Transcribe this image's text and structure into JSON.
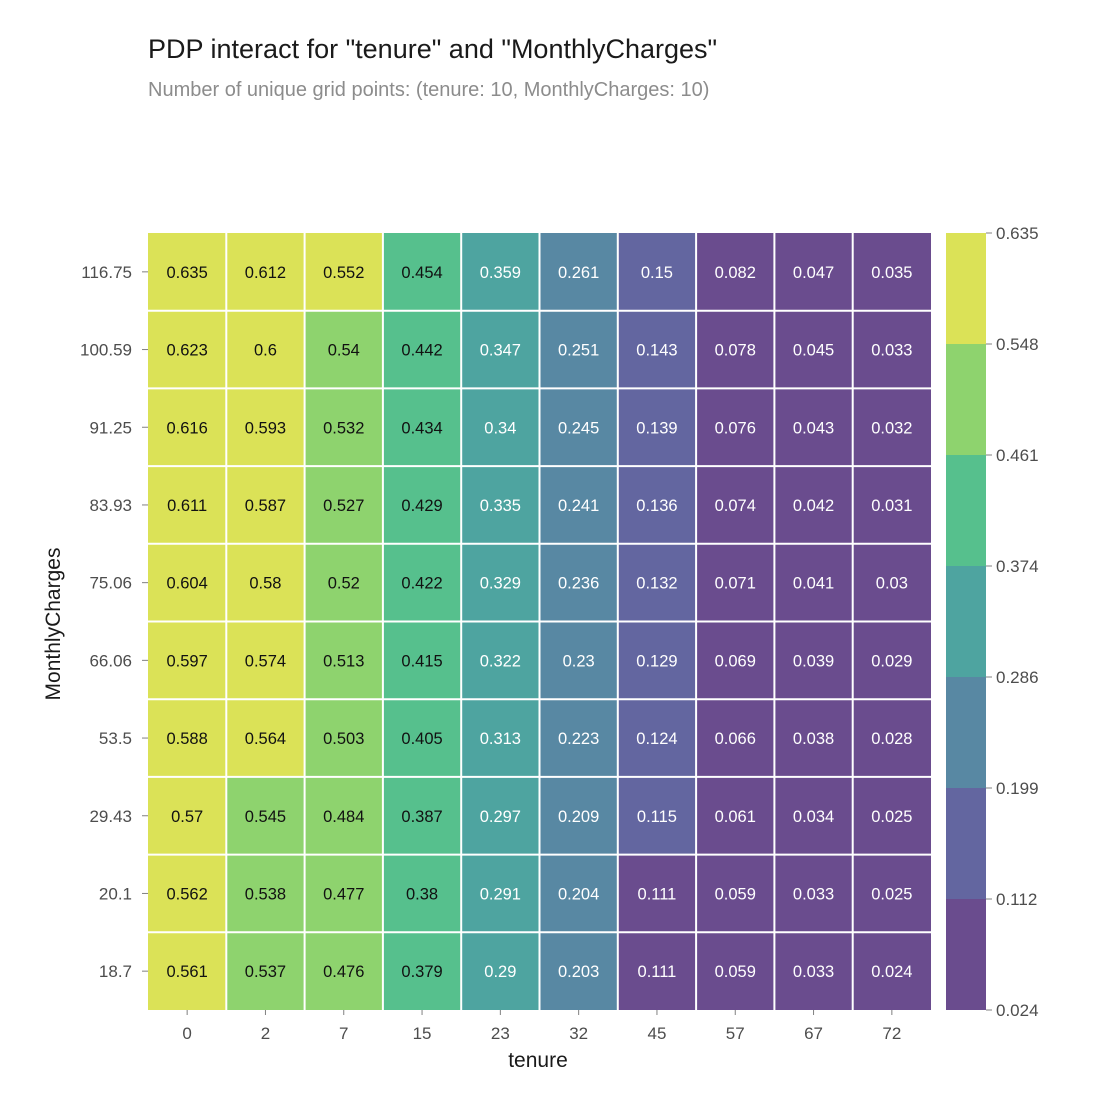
{
  "chart_data": {
    "type": "heatmap",
    "title": "PDP interact for \"tenure\" and \"MonthlyCharges\"",
    "subtitle": "Number of unique grid points: (tenure: 10, MonthlyCharges: 10)",
    "xlabel": "tenure",
    "ylabel": "MonthlyCharges",
    "x": [
      "0",
      "2",
      "7",
      "15",
      "23",
      "32",
      "45",
      "57",
      "67",
      "72"
    ],
    "y": [
      "116.75",
      "100.59",
      "91.25",
      "83.93",
      "75.06",
      "66.06",
      "53.5",
      "29.43",
      "20.1",
      "18.7"
    ],
    "values": [
      [
        0.635,
        0.612,
        0.552,
        0.454,
        0.359,
        0.261,
        0.15,
        0.082,
        0.047,
        0.035
      ],
      [
        0.623,
        0.6,
        0.54,
        0.442,
        0.347,
        0.251,
        0.143,
        0.078,
        0.045,
        0.033
      ],
      [
        0.616,
        0.593,
        0.532,
        0.434,
        0.34,
        0.245,
        0.139,
        0.076,
        0.043,
        0.032
      ],
      [
        0.611,
        0.587,
        0.527,
        0.429,
        0.335,
        0.241,
        0.136,
        0.074,
        0.042,
        0.031
      ],
      [
        0.604,
        0.58,
        0.52,
        0.422,
        0.329,
        0.236,
        0.132,
        0.071,
        0.041,
        0.03
      ],
      [
        0.597,
        0.574,
        0.513,
        0.415,
        0.322,
        0.23,
        0.129,
        0.069,
        0.039,
        0.029
      ],
      [
        0.588,
        0.564,
        0.503,
        0.405,
        0.313,
        0.223,
        0.124,
        0.066,
        0.038,
        0.028
      ],
      [
        0.57,
        0.545,
        0.484,
        0.387,
        0.297,
        0.209,
        0.115,
        0.061,
        0.034,
        0.025
      ],
      [
        0.562,
        0.538,
        0.477,
        0.38,
        0.291,
        0.204,
        0.111,
        0.059,
        0.033,
        0.025
      ],
      [
        0.561,
        0.537,
        0.476,
        0.379,
        0.29,
        0.203,
        0.111,
        0.059,
        0.033,
        0.024
      ]
    ],
    "colorbar": {
      "ticks": [
        "0.024",
        "0.112",
        "0.199",
        "0.286",
        "0.374",
        "0.461",
        "0.548",
        "0.635"
      ],
      "colors": [
        "#6a4c8e",
        "#6366a0",
        "#5888a3",
        "#4ea4a0",
        "#56c08d",
        "#8ed36e",
        "#dbe257"
      ]
    },
    "colors": {
      "light_text": "#ffffff",
      "dark_text": "#111111",
      "grid": "#ffffff",
      "tick_text": "#4d4d4d"
    }
  }
}
